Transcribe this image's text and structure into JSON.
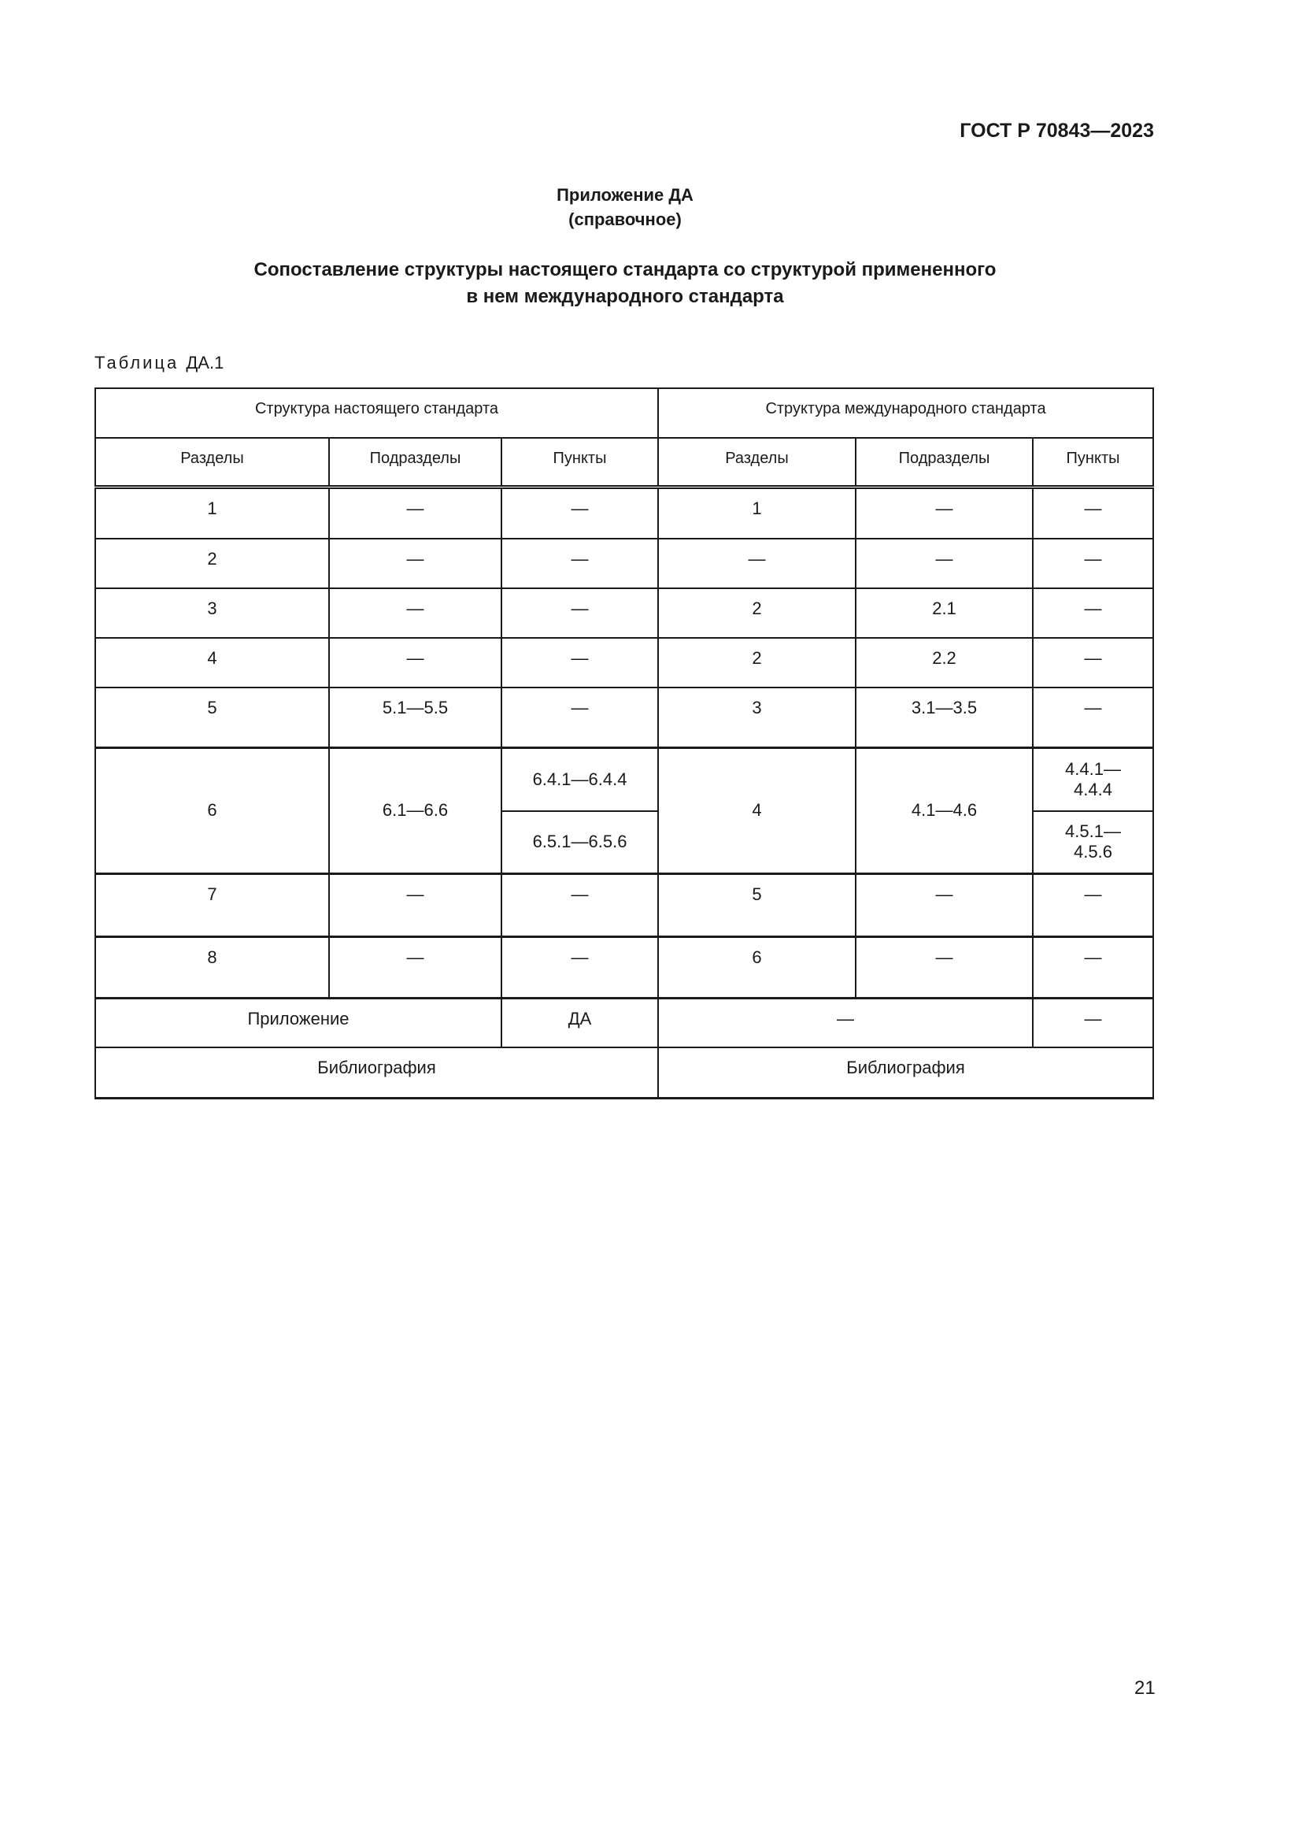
{
  "header": {
    "doc_code": "ГОСТ Р 70843—2023"
  },
  "appendix": {
    "label": "Приложение ДА",
    "type": "(справочное)"
  },
  "title": {
    "line1": "Сопоставление структуры настоящего стандарта со структурой примененного",
    "line2": "в нем международного стандарта"
  },
  "table_caption": {
    "word": "Таблица",
    "number": "ДА.1"
  },
  "table": {
    "group_headers": [
      "Структура настоящего стандарта",
      "Структура международного стандарта"
    ],
    "columns": [
      "Разделы",
      "Подразделы",
      "Пункты",
      "Разделы",
      "Подразделы",
      "Пункты"
    ],
    "rows": [
      [
        "1",
        "—",
        "—",
        "1",
        "—",
        "—"
      ],
      [
        "2",
        "—",
        "—",
        "—",
        "—",
        "—"
      ],
      [
        "3",
        "—",
        "—",
        "2",
        "2.1",
        "—"
      ],
      [
        "4",
        "—",
        "—",
        "2",
        "2.2",
        "—"
      ],
      [
        "5",
        "5.1—5.5",
        "—",
        "3",
        "3.1—3.5",
        "—"
      ]
    ],
    "row6": {
      "sec": "6",
      "sub": "6.1—6.6",
      "items": [
        "6.4.1—6.4.4",
        "6.5.1—6.5.6"
      ],
      "int_sec": "4",
      "int_sub": "4.1—4.6",
      "int_items": [
        "4.4.1—4.4.4",
        "4.5.1—4.5.6"
      ]
    },
    "rows_after": [
      [
        "7",
        "—",
        "—",
        "5",
        "—",
        "—"
      ],
      [
        "8",
        "—",
        "—",
        "6",
        "—",
        "—"
      ]
    ],
    "appendix_row": {
      "label": "Приложение",
      "value": "ДА",
      "int_value": "—",
      "int_items": "—"
    },
    "bibliography_row": {
      "national": "Библиография",
      "international": "Библиография"
    }
  },
  "page_number": "21"
}
